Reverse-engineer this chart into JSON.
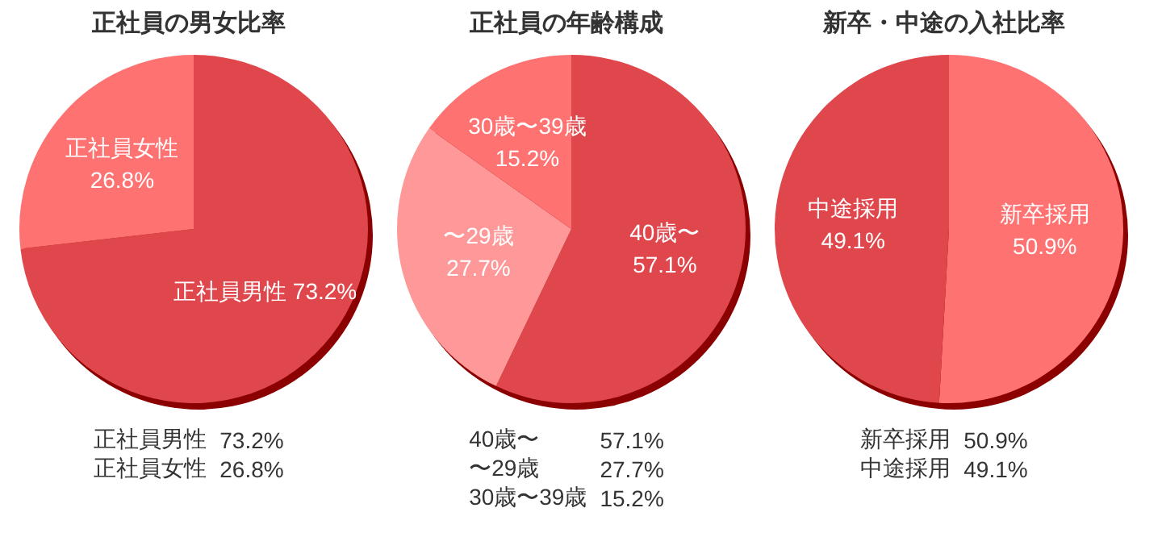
{
  "chart_data": [
    {
      "type": "pie",
      "title": "正社員の男女比率",
      "categories": [
        "正社員男性",
        "正社員女性"
      ],
      "values": [
        73.2,
        26.8
      ],
      "value_labels": [
        "73.2%",
        "26.8%"
      ],
      "colors": [
        "#e0474c",
        "#ff7272"
      ]
    },
    {
      "type": "pie",
      "title": "正社員の年齢構成",
      "categories": [
        "40歳〜",
        "〜29歳",
        "30歳〜39歳"
      ],
      "values": [
        57.1,
        27.7,
        15.2
      ],
      "value_labels": [
        "57.1%",
        "27.7%",
        "15.2%"
      ],
      "colors": [
        "#e0474c",
        "#ff9898",
        "#ff7272"
      ]
    },
    {
      "type": "pie",
      "title": "新卒・中途の入社比率",
      "categories": [
        "新卒採用",
        "中途採用"
      ],
      "values": [
        50.9,
        49.1
      ],
      "value_labels": [
        "50.9%",
        "49.1%"
      ],
      "colors": [
        "#ff7272",
        "#e0474c"
      ]
    }
  ]
}
